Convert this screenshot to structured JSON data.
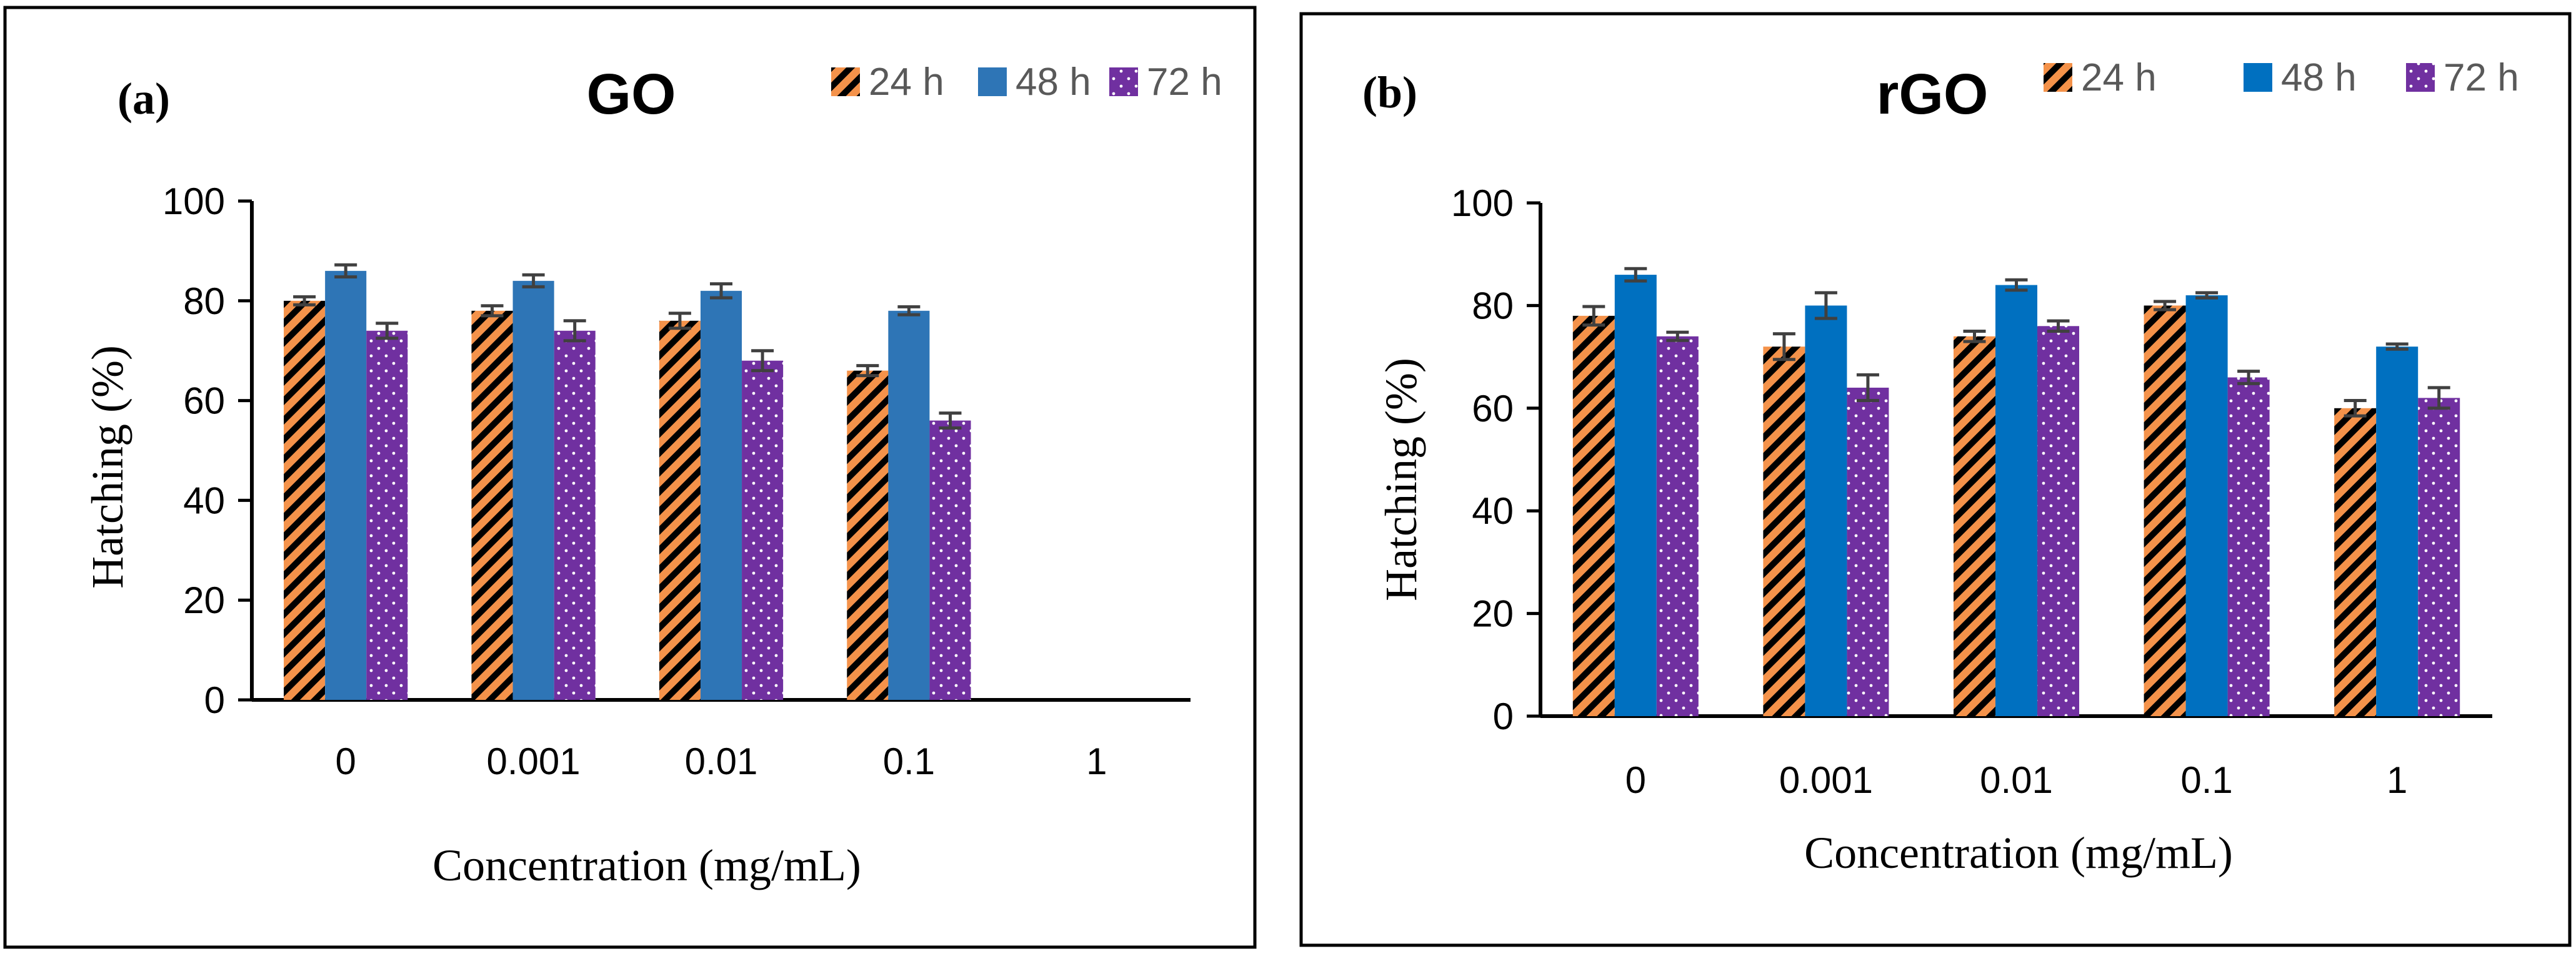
{
  "colors": {
    "c24": "#F4924A",
    "c48_a": "#2E75B6",
    "c48_b": "#0070C0",
    "c72": "#7030A0",
    "axis": "#000000",
    "error": "#404040"
  },
  "chart_data": [
    {
      "type": "bar",
      "panel_label": "(a)",
      "title": "GO",
      "xlabel": "Concentration (mg/mL)",
      "ylabel": "Hatching (%)",
      "ylim": [
        0,
        100
      ],
      "yticks": [
        "0",
        "20",
        "40",
        "60",
        "80",
        "100"
      ],
      "categories": [
        "0",
        "0.001",
        "0.01",
        "0.1",
        "1"
      ],
      "legend_position": "top-right",
      "series": [
        {
          "name": "24 h",
          "pattern": "diagonal-stripes",
          "values": [
            80,
            78,
            76,
            66,
            0
          ],
          "errors": [
            0.8,
            1.0,
            1.5,
            1.0,
            0
          ]
        },
        {
          "name": "48 h",
          "pattern": "solid",
          "values": [
            86,
            84,
            82,
            78,
            0
          ],
          "errors": [
            1.2,
            1.2,
            1.4,
            0.8,
            0
          ]
        },
        {
          "name": "72 h",
          "pattern": "dots",
          "values": [
            74,
            74,
            68,
            56,
            0
          ],
          "errors": [
            1.5,
            2.0,
            2.0,
            1.5,
            0
          ]
        }
      ]
    },
    {
      "type": "bar",
      "panel_label": "(b)",
      "title": "rGO",
      "xlabel": "Concentration (mg/mL)",
      "ylabel": "Hatching (%)",
      "ylim": [
        0,
        100
      ],
      "yticks": [
        "0",
        "20",
        "40",
        "60",
        "80",
        "100"
      ],
      "categories": [
        "0",
        "0.001",
        "0.01",
        "0.1",
        "1"
      ],
      "legend_position": "top-right",
      "series": [
        {
          "name": "24 h",
          "pattern": "diagonal-stripes",
          "values": [
            78,
            72,
            74,
            80,
            60
          ],
          "errors": [
            1.8,
            2.5,
            1.0,
            0.8,
            1.5
          ]
        },
        {
          "name": "48 h",
          "pattern": "solid",
          "values": [
            86,
            80,
            84,
            82,
            72
          ],
          "errors": [
            1.2,
            2.5,
            1.0,
            0.5,
            0.5
          ]
        },
        {
          "name": "72 h",
          "pattern": "dots",
          "values": [
            74,
            64,
            76,
            66,
            62
          ],
          "errors": [
            0.8,
            2.5,
            1.0,
            1.2,
            2.0
          ]
        }
      ]
    }
  ]
}
